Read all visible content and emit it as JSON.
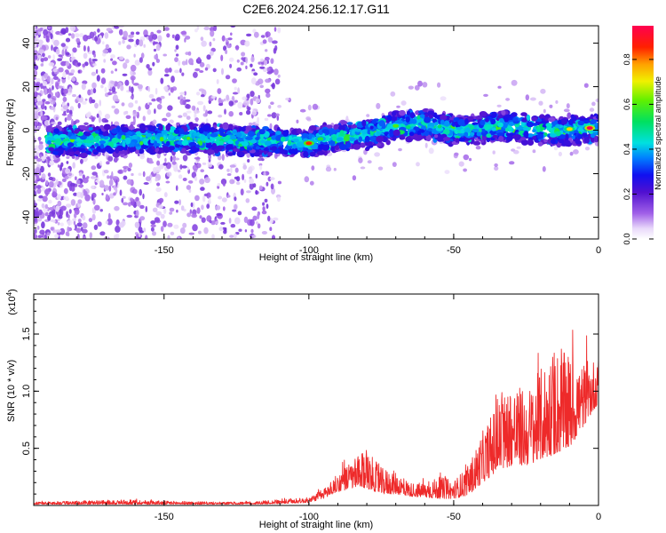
{
  "title": "C2E6.2024.256.12.17.G11",
  "colors": {
    "spectrogram_dots": "#7a2fd0",
    "snr_line": "#ee2a2a",
    "background": "#ffffff"
  },
  "chart_data": [
    {
      "type": "heatmap",
      "subtype": "spectrogram",
      "xlabel": "Height of straight line (km)",
      "ylabel": "Frequency (Hz)",
      "xlim": [
        -195,
        0
      ],
      "ylim": [
        -50,
        48
      ],
      "xticks": [
        -150,
        -100,
        -50,
        0
      ],
      "yticks": [
        -40,
        -20,
        0,
        20,
        40
      ],
      "colorbar": {
        "label": "Normalized spectral amplitude",
        "range": [
          0,
          0.95
        ],
        "ticks": [
          0.0,
          0.2,
          0.4,
          0.6,
          0.8
        ],
        "colormap": "rainbow (white-violet-blue-cyan-green-yellow-red)"
      },
      "ridge": {
        "description": "frequency of dominant energy band vs height",
        "x": [
          -185,
          -175,
          -160,
          -145,
          -130,
          -120,
          -110,
          -100,
          -90,
          -80,
          -70,
          -60,
          -50,
          -40,
          -30,
          -20,
          -10,
          0
        ],
        "y": [
          -5,
          -5,
          -4,
          -4,
          -4,
          -5,
          -5,
          -6,
          -3,
          -2,
          2,
          3,
          0,
          1,
          2,
          0,
          0,
          1
        ],
        "peak_amplitude_x": -3,
        "peak_amplitude_y": 1
      },
      "grid": false
    },
    {
      "type": "line",
      "xlabel": "Height of straight line (km)",
      "ylabel": "SNR (10 * v/v)",
      "y_multiplier": "(x10⁴)",
      "y_multiplier_base": "(x10",
      "y_multiplier_exp": "4",
      "y_multiplier_close": ")",
      "xlim": [
        -195,
        0
      ],
      "ylim": [
        0,
        18500
      ],
      "xticks": [
        -150,
        -100,
        -50,
        0
      ],
      "yticks": [
        0.5,
        1.0,
        1.5
      ],
      "ytick_labels": [
        "0.5",
        "1.0",
        "1.5"
      ],
      "series": [
        {
          "envelope_x": [
            -195,
            -180,
            -170,
            -160,
            -150,
            -140,
            -130,
            -120,
            -110,
            -100,
            -95,
            -90,
            -85,
            -80,
            -75,
            -70,
            -65,
            -60,
            -55,
            -50,
            -45,
            -40,
            -35,
            -30,
            -25,
            -20,
            -15,
            -10,
            -5,
            0
          ],
          "envelope_y": [
            300,
            400,
            450,
            500,
            400,
            350,
            300,
            350,
            500,
            700,
            1500,
            2800,
            4000,
            4800,
            3300,
            3000,
            2000,
            2000,
            2500,
            2200,
            3500,
            6500,
            9000,
            11000,
            10000,
            12000,
            14000,
            13000,
            12500,
            13000
          ],
          "baseline_y": [
            100,
            100,
            100,
            100,
            100,
            100,
            100,
            100,
            150,
            250,
            600,
            1200,
            1500,
            1500,
            1000,
            1000,
            800,
            700,
            600,
            600,
            900,
            2000,
            3000,
            3500,
            3500,
            4000,
            4500,
            5000,
            7000,
            9000
          ]
        }
      ],
      "grid": false
    }
  ]
}
